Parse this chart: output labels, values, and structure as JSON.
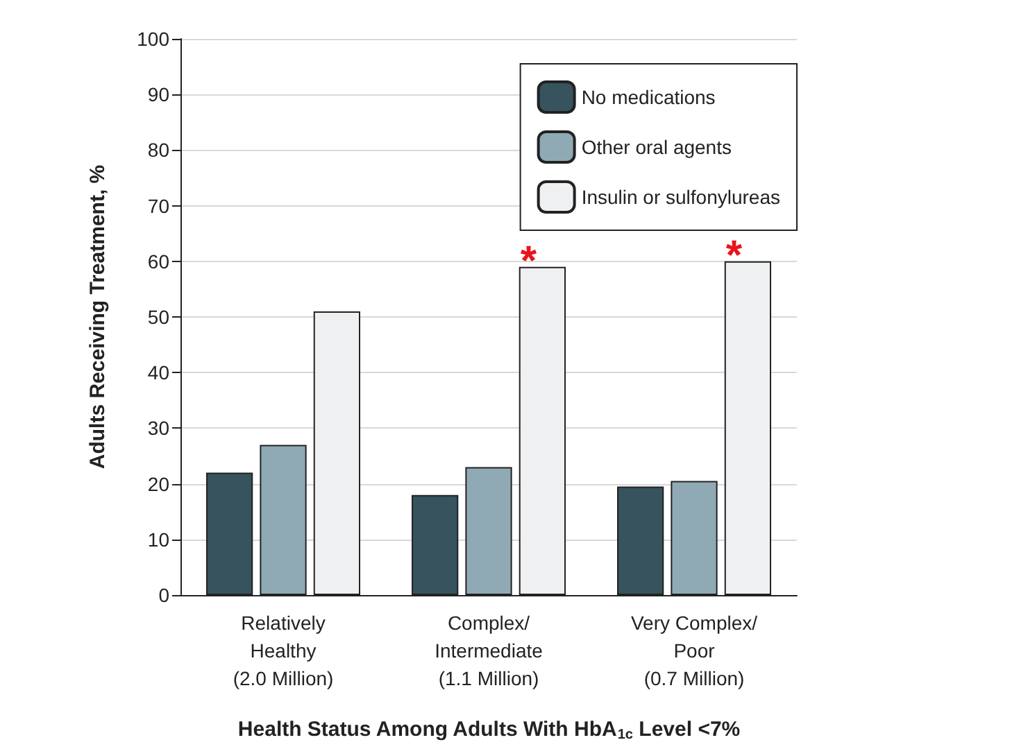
{
  "chart_data": {
    "type": "bar",
    "xlabel": "Health Status Among Adults With HbA$_{1c}$ Level <7%",
    "ylabel": "Adults Receiving Treatment, %",
    "categories": [
      "Relatively\nHealthy\n(2.0 Million)",
      "Complex/\nIntermediate\n(1.1 Million)",
      "Very Complex/\nPoor\n(0.7 Million)"
    ],
    "series": [
      {
        "name": "No medications",
        "color": "#36535e",
        "values": [
          22,
          18,
          19.5
        ]
      },
      {
        "name": "Other oral agents",
        "color": "#90aab5",
        "values": [
          27,
          23,
          20.5
        ]
      },
      {
        "name": "Insulin or sulfonylureas",
        "color": "#eef0f2",
        "values": [
          51,
          59,
          60
        ],
        "value_labels": [
          null,
          "*",
          "*"
        ]
      }
    ],
    "ylim": [
      0,
      100
    ],
    "yticks": [
      0,
      10,
      20,
      30,
      40,
      50,
      60,
      70,
      80,
      90,
      100
    ],
    "grid": "y",
    "legend": "top right"
  }
}
